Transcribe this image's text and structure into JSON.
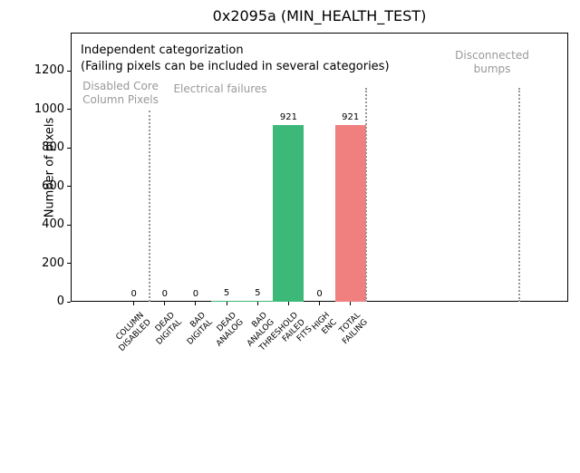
{
  "chart_data": {
    "type": "bar",
    "title": "0x2095a (MIN_HEALTH_TEST)",
    "xlabel": "",
    "ylabel": "Number of pixels",
    "ylim": [
      0,
      1400
    ],
    "yticks": [
      0,
      200,
      400,
      600,
      800,
      1000,
      1200
    ],
    "grid": false,
    "legend": null,
    "categories": [
      [
        "COLUMN",
        "DISABLED"
      ],
      [
        "DEAD",
        "DIGITAL"
      ],
      [
        "BAD",
        "DIGITAL"
      ],
      [
        "DEAD",
        "ANALOG"
      ],
      [
        "BAD",
        "ANALOG"
      ],
      [
        "THRESHOLD",
        "FAILED",
        "FITS"
      ],
      [
        "HIGH",
        "ENC"
      ],
      [
        "TOTAL",
        "FAILING"
      ]
    ],
    "values": [
      0,
      0,
      0,
      5,
      5,
      921,
      0,
      921
    ],
    "value_labels": [
      "0",
      "0",
      "0",
      "5",
      "5",
      "921",
      "0",
      "921"
    ],
    "bar_colors": [
      "#3CB878",
      "#3CB878",
      "#3CB878",
      "#3CB878",
      "#3CB878",
      "#3CB878",
      "#3CB878",
      "#F08080"
    ],
    "colors": {
      "green_bar": "#3CB878",
      "red_bar": "#F08080",
      "annotation_gray": "#999999",
      "separator_gray": "#969696",
      "axis_black": "#000000"
    },
    "annotations": [
      {
        "name": "annotation-independent-categorization",
        "lines": [
          "Independent categorization"
        ],
        "x": 89,
        "y": 48,
        "color": "#000000",
        "size": 13,
        "align": "left"
      },
      {
        "name": "annotation-categories-note",
        "lines": [
          "(Failing pixels can be included in several categories)"
        ],
        "x": 89,
        "y": 66,
        "color": "#000000",
        "size": 13,
        "align": "left"
      },
      {
        "name": "annotation-disabled-core-column-pixels",
        "lines": [
          "Disabled Core",
          "Column Pixels"
        ],
        "x": 133,
        "y": 88,
        "color": "#999999",
        "size": 12,
        "align": "center"
      },
      {
        "name": "annotation-electrical-failures",
        "lines": [
          "Electrical failures"
        ],
        "x": 243,
        "y": 91,
        "color": "#999999",
        "size": 12,
        "align": "center"
      },
      {
        "name": "annotation-disconnected-bumps",
        "lines": [
          "Disconnected",
          "bumps"
        ],
        "x": 543,
        "y": 54,
        "color": "#999999",
        "size": 12,
        "align": "center"
      }
    ],
    "separators": [
      {
        "x": 165,
        "y_top": 122
      },
      {
        "x": 404,
        "y_top": 97
      },
      {
        "x": 573,
        "y_top": 97
      }
    ]
  }
}
